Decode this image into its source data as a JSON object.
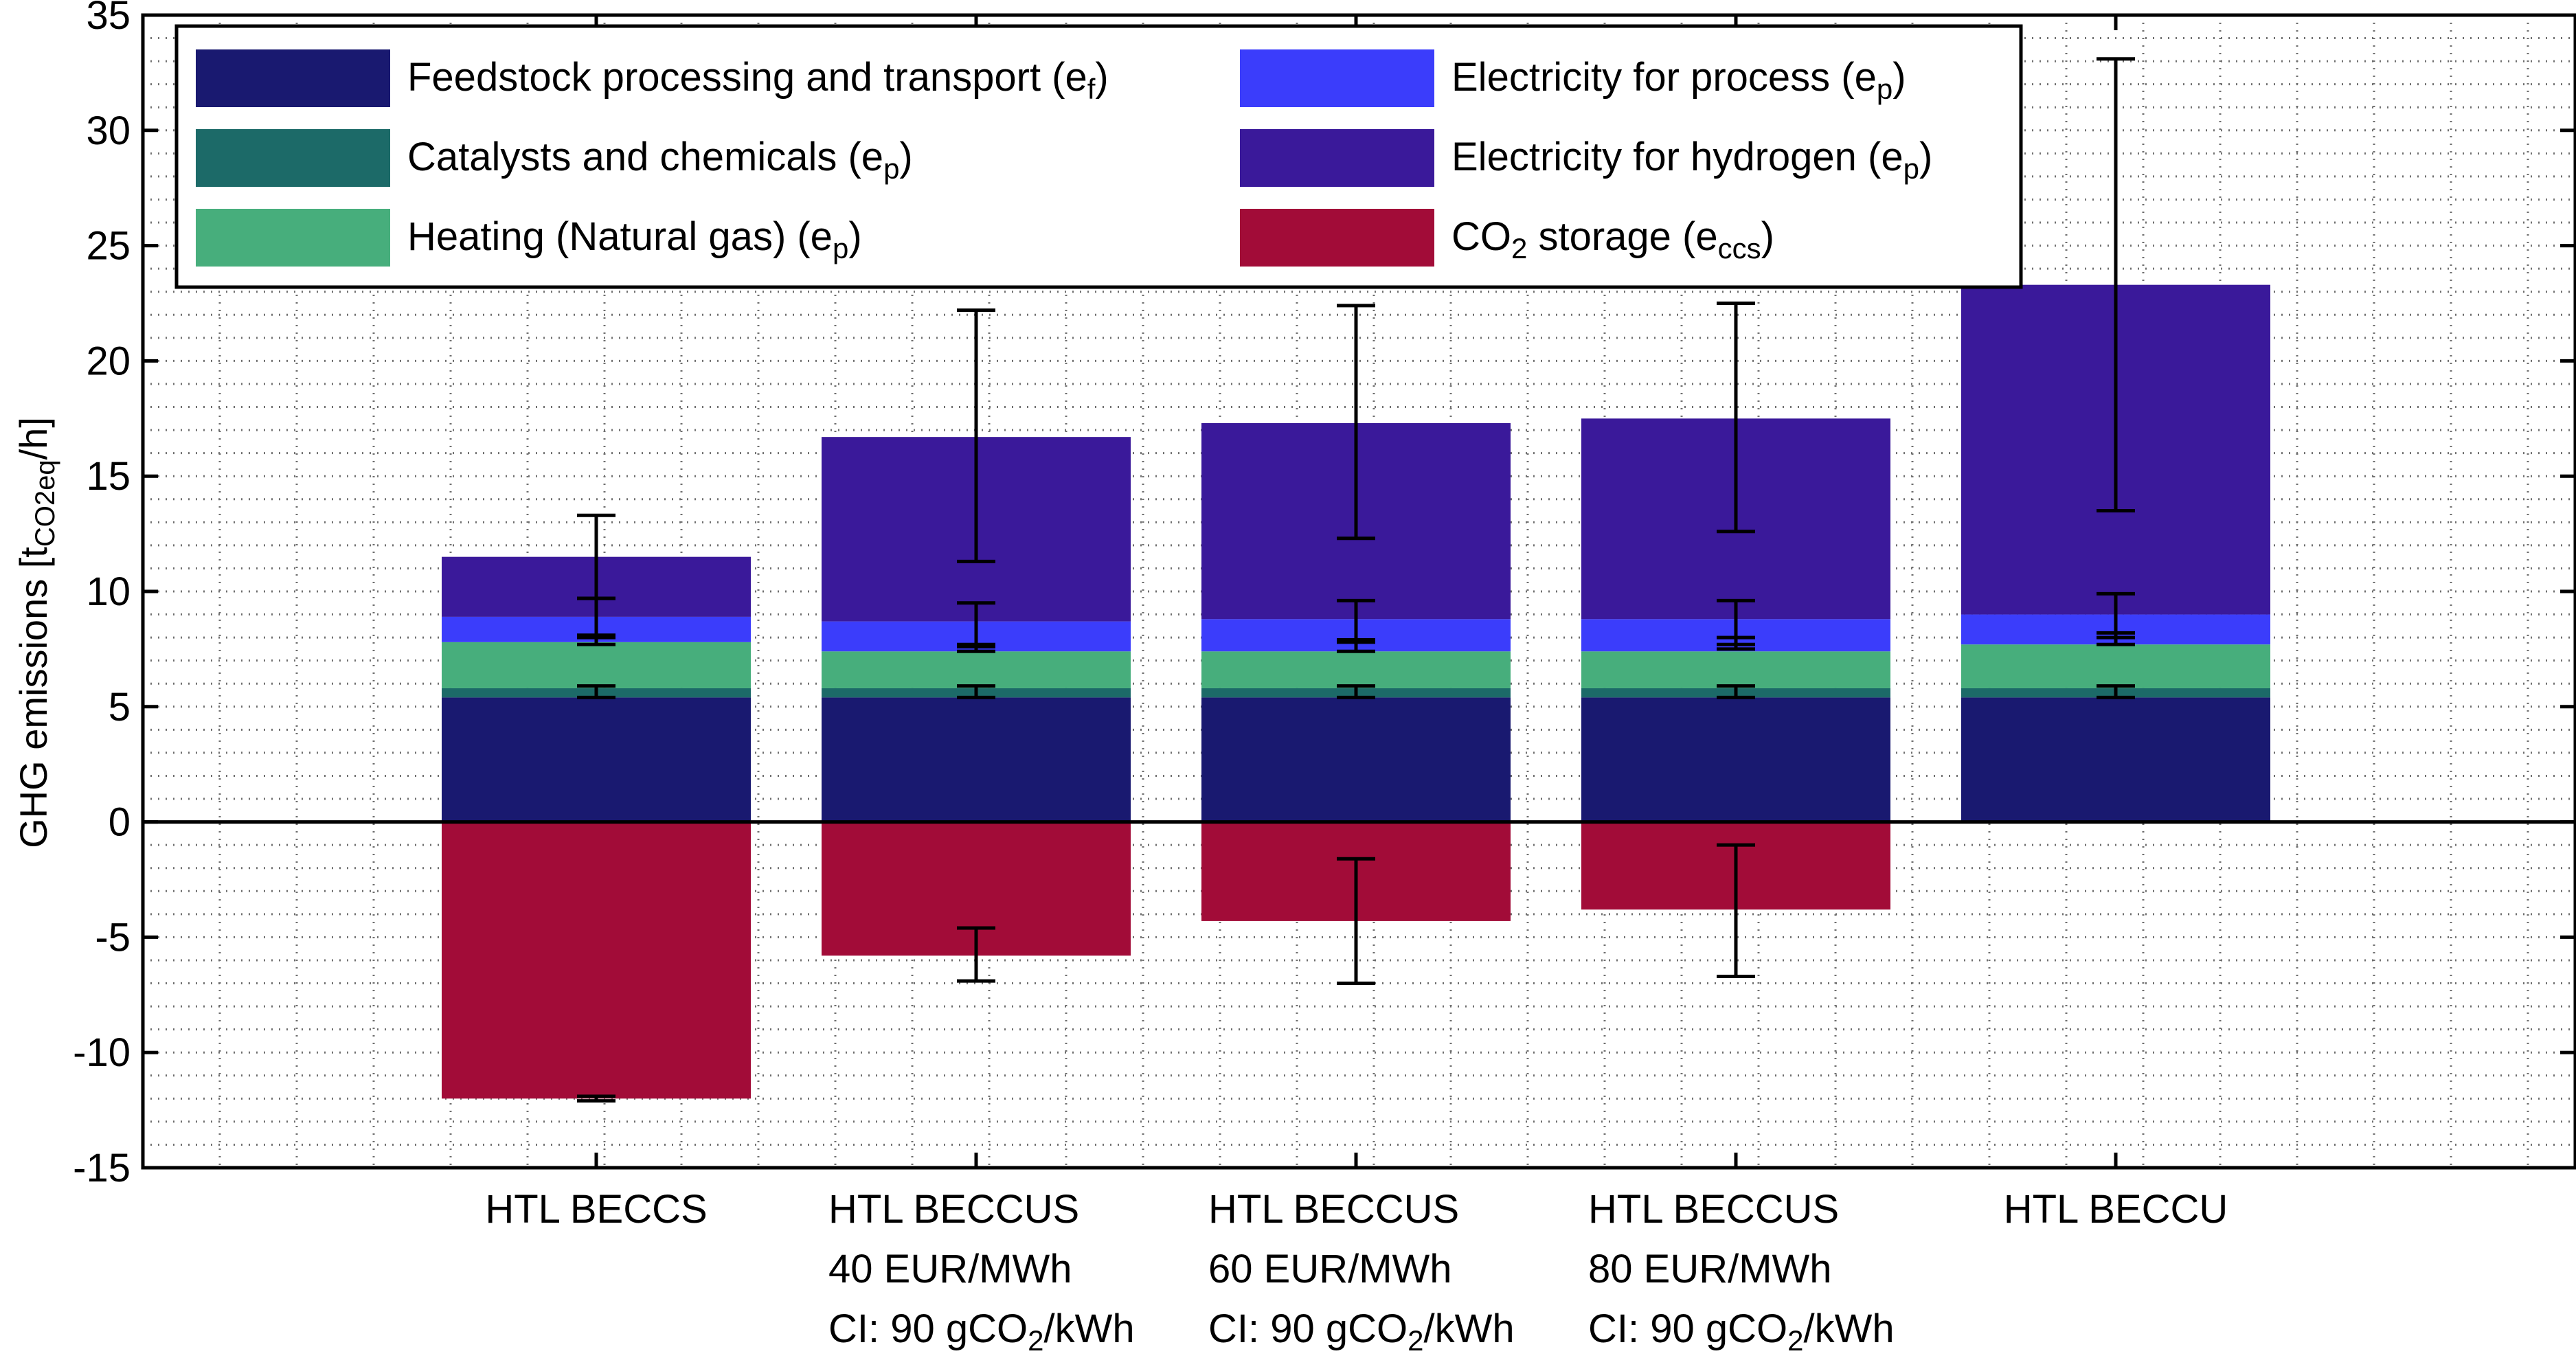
{
  "chart_data": {
    "type": "bar",
    "stacked": true,
    "error_bars": true,
    "title": "",
    "xlabel": "",
    "ylabel": {
      "main": "GHG emissions [t",
      "subscript": "CO2eq",
      "suffix": "/h]"
    },
    "ylim": [
      -15,
      35
    ],
    "yticks": [
      35,
      30,
      25,
      20,
      15,
      10,
      5,
      0,
      -5,
      -10,
      -15
    ],
    "grid": "minor-dotted",
    "legend_position": "top-left",
    "categories": [
      {
        "lines": [
          "HTL BECCS"
        ]
      },
      {
        "lines": [
          "HTL BECCUS",
          "40 EUR/MWh",
          "CI: 90 gCO|2|/kWh"
        ]
      },
      {
        "lines": [
          "HTL BECCUS",
          "60 EUR/MWh",
          "CI: 90 gCO|2|/kWh"
        ]
      },
      {
        "lines": [
          "HTL BECCUS",
          "80 EUR/MWh",
          "CI: 90 gCO|2|/kWh"
        ]
      },
      {
        "lines": [
          "HTL BECCU"
        ]
      }
    ],
    "series": [
      {
        "name": "Feedstock processing and transport (e|f|)",
        "color": "#191970",
        "values": [
          5.4,
          5.4,
          5.4,
          5.4,
          5.4
        ],
        "error": [
          [
            5.4,
            5.9
          ],
          [
            5.4,
            5.9
          ],
          [
            5.4,
            5.9
          ],
          [
            5.4,
            5.9
          ],
          [
            5.4,
            5.9
          ]
        ]
      },
      {
        "name": "Catalysts and chemicals (e|p|)",
        "color": "#1c6a68",
        "values": [
          0.4,
          0.4,
          0.4,
          0.4,
          0.4
        ],
        "error": null
      },
      {
        "name": "Heating (Natural gas) (e|p|)",
        "color": "#47ae7c",
        "values": [
          2.0,
          1.6,
          1.6,
          1.6,
          1.9
        ],
        "error": [
          [
            7.7,
            8.1
          ],
          [
            7.4,
            7.7
          ],
          [
            7.4,
            7.9
          ],
          [
            7.5,
            8.0
          ],
          [
            7.7,
            8.2
          ]
        ]
      },
      {
        "name": "Electricity for process (e|p|)",
        "color": "#3b3dfb",
        "values": [
          1.1,
          1.3,
          1.4,
          1.4,
          1.3
        ],
        "error": [
          [
            8.0,
            9.7
          ],
          [
            7.6,
            9.5
          ],
          [
            7.8,
            9.6
          ],
          [
            7.7,
            9.6
          ],
          [
            8.0,
            9.9
          ]
        ]
      },
      {
        "name": "Electricity for hydrogen (e|p|)",
        "color": "#3a199a",
        "values": [
          2.6,
          8.0,
          8.5,
          8.7,
          14.3
        ],
        "error": [
          [
            9.7,
            13.3
          ],
          [
            11.3,
            22.2
          ],
          [
            12.3,
            22.4
          ],
          [
            12.6,
            22.5
          ],
          [
            13.5,
            33.1
          ]
        ]
      },
      {
        "name": "CO|2| storage (e|ccs|)",
        "color": "#a20c38",
        "values": [
          -12.0,
          -5.8,
          -4.3,
          -3.8,
          0
        ],
        "error": [
          [
            -12.1,
            -11.9
          ],
          [
            -6.9,
            -4.6
          ],
          [
            -7.0,
            -1.6
          ],
          [
            -6.7,
            -1.0
          ],
          null
        ]
      }
    ]
  }
}
